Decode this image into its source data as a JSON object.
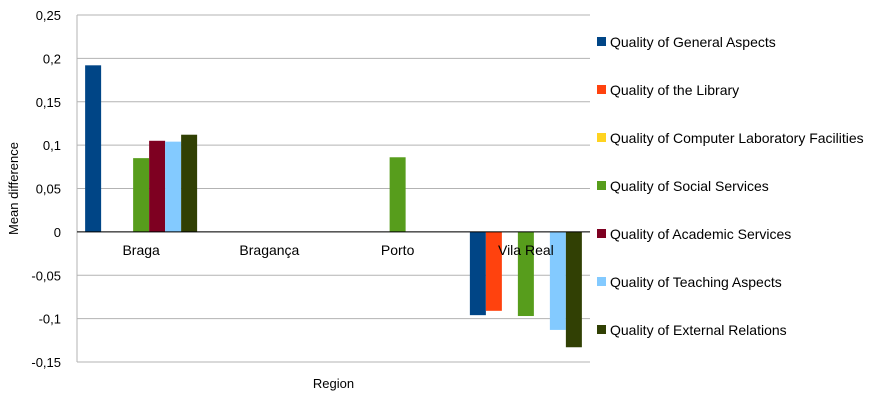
{
  "chart_data": {
    "type": "bar",
    "xlabel": "Region",
    "ylabel": "Mean difference",
    "ylim": [
      -0.15,
      0.25
    ],
    "yticks": [
      0.25,
      0.2,
      0.15,
      0.1,
      0.05,
      0,
      -0.05,
      -0.1,
      -0.15
    ],
    "ytick_labels": [
      "0,25",
      "0,2",
      "0,15",
      "0,1",
      "0,05",
      "0",
      "-0,05",
      "-0,1",
      "-0,15"
    ],
    "grid": true,
    "legend_position": "right",
    "categories": [
      "Braga",
      "Bragança",
      "Porto",
      "Vila Real"
    ],
    "series": [
      {
        "name": "Quality of General Aspects",
        "color": "#004586",
        "values": [
          0.192,
          0,
          0,
          -0.096
        ]
      },
      {
        "name": "Quality of the Library",
        "color": "#ff420e",
        "values": [
          0,
          0,
          0,
          -0.091
        ]
      },
      {
        "name": "Quality of Computer Laboratory Facilities",
        "color": "#ffd320",
        "values": [
          0,
          0,
          0,
          0
        ]
      },
      {
        "name": "Quality of Social Services",
        "color": "#579d1c",
        "values": [
          0.085,
          0,
          0.086,
          -0.097
        ]
      },
      {
        "name": "Quality of Academic Services",
        "color": "#7e0021",
        "values": [
          0.105,
          0,
          0,
          0
        ]
      },
      {
        "name": "Quality of Teaching Aspects",
        "color": "#83caff",
        "values": [
          0.104,
          0,
          0,
          -0.113
        ]
      },
      {
        "name": "Quality of External Relations",
        "color": "#314004",
        "values": [
          0.112,
          0,
          0,
          -0.133
        ]
      }
    ]
  }
}
